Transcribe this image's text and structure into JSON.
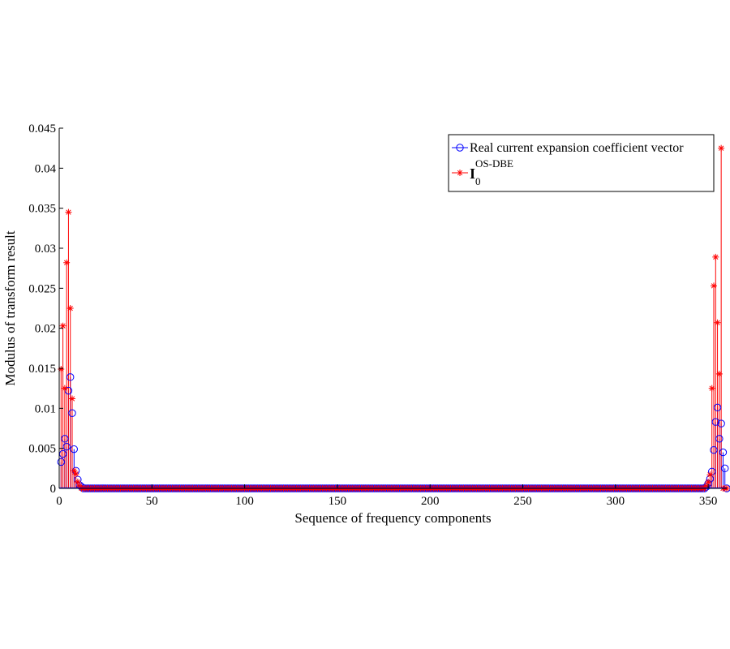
{
  "chart_data": {
    "type": "scatter",
    "title": "",
    "xlabel": "Sequence of frequency components",
    "ylabel": "Modulus of transform result",
    "xlim": [
      0,
      360
    ],
    "ylim": [
      0,
      0.045
    ],
    "x_ticks": [
      "0",
      "50",
      "100",
      "150",
      "200",
      "250",
      "300",
      "350"
    ],
    "x_tick_values": [
      0,
      50,
      100,
      150,
      200,
      250,
      300,
      350
    ],
    "y_ticks": [
      "0",
      "0.005",
      "0.01",
      "0.015",
      "0.02",
      "0.025",
      "0.03",
      "0.035",
      "0.04",
      "0.045"
    ],
    "y_tick_values": [
      0,
      0.005,
      0.01,
      0.015,
      0.02,
      0.025,
      0.03,
      0.035,
      0.04,
      0.045
    ],
    "legend_position": "top-right",
    "grid": false,
    "n_points": 360,
    "series": [
      {
        "name": "Real current expansion coefficient vector",
        "color": "#0000ff",
        "marker": "circle",
        "stem": true,
        "nonzero_points": [
          {
            "x": 1,
            "y": 0.0033
          },
          {
            "x": 2,
            "y": 0.0043
          },
          {
            "x": 3,
            "y": 0.0062
          },
          {
            "x": 4,
            "y": 0.0052
          },
          {
            "x": 5,
            "y": 0.0122
          },
          {
            "x": 6,
            "y": 0.0139
          },
          {
            "x": 7,
            "y": 0.0094
          },
          {
            "x": 8,
            "y": 0.0049
          },
          {
            "x": 9,
            "y": 0.0022
          },
          {
            "x": 10,
            "y": 0.0011
          },
          {
            "x": 11,
            "y": 0.0004
          },
          {
            "x": 12,
            "y": 0.0002
          },
          {
            "x": 349,
            "y": 0.0002
          },
          {
            "x": 350,
            "y": 0.0006
          },
          {
            "x": 351,
            "y": 0.0012
          },
          {
            "x": 352,
            "y": 0.0021
          },
          {
            "x": 353,
            "y": 0.0048
          },
          {
            "x": 354,
            "y": 0.0083
          },
          {
            "x": 355,
            "y": 0.0101
          },
          {
            "x": 356,
            "y": 0.0062
          },
          {
            "x": 357,
            "y": 0.0081
          },
          {
            "x": 358,
            "y": 0.0045
          },
          {
            "x": 359,
            "y": 0.0025
          }
        ]
      },
      {
        "name": "I0 OS-DBE",
        "color": "#ff0000",
        "marker": "star",
        "stem": true,
        "nonzero_points": [
          {
            "x": 1,
            "y": 0.0149
          },
          {
            "x": 2,
            "y": 0.0203
          },
          {
            "x": 3,
            "y": 0.0125
          },
          {
            "x": 4,
            "y": 0.0282
          },
          {
            "x": 5,
            "y": 0.0345
          },
          {
            "x": 6,
            "y": 0.0225
          },
          {
            "x": 7,
            "y": 0.0112
          },
          {
            "x": 8,
            "y": 0.0022
          },
          {
            "x": 9,
            "y": 0.0018
          },
          {
            "x": 10,
            "y": 0.0008
          },
          {
            "x": 11,
            "y": 0.0003
          },
          {
            "x": 349,
            "y": 0.0003
          },
          {
            "x": 350,
            "y": 0.0008
          },
          {
            "x": 351,
            "y": 0.0017
          },
          {
            "x": 352,
            "y": 0.0125
          },
          {
            "x": 353,
            "y": 0.0253
          },
          {
            "x": 354,
            "y": 0.0289
          },
          {
            "x": 355,
            "y": 0.0207
          },
          {
            "x": 356,
            "y": 0.0143
          },
          {
            "x": 357,
            "y": 0.0425
          }
        ]
      }
    ]
  },
  "legend": {
    "entry1": "Real current expansion coefficient vector",
    "entry2_symbol": "I",
    "entry2_subscript": "0",
    "entry2_superscript": "OS-DBE"
  }
}
